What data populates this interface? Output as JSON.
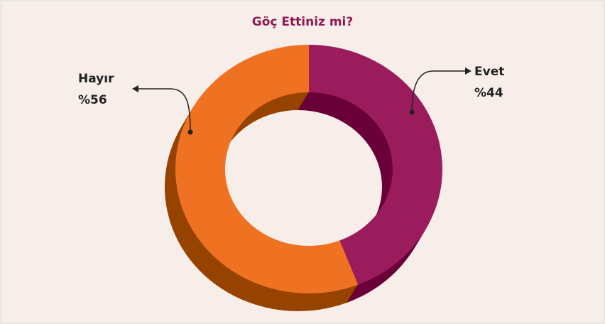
{
  "chart_data": {
    "type": "donut",
    "title": "Göç Ettiniz mi?",
    "categories": [
      "Evet",
      "Hayır"
    ],
    "values": [
      44,
      56
    ],
    "value_labels": [
      "%44",
      "%56"
    ],
    "colors": [
      "#9b1c5c",
      "#ee7222"
    ],
    "side_colors": [
      "#6a0038",
      "#964300"
    ]
  }
}
